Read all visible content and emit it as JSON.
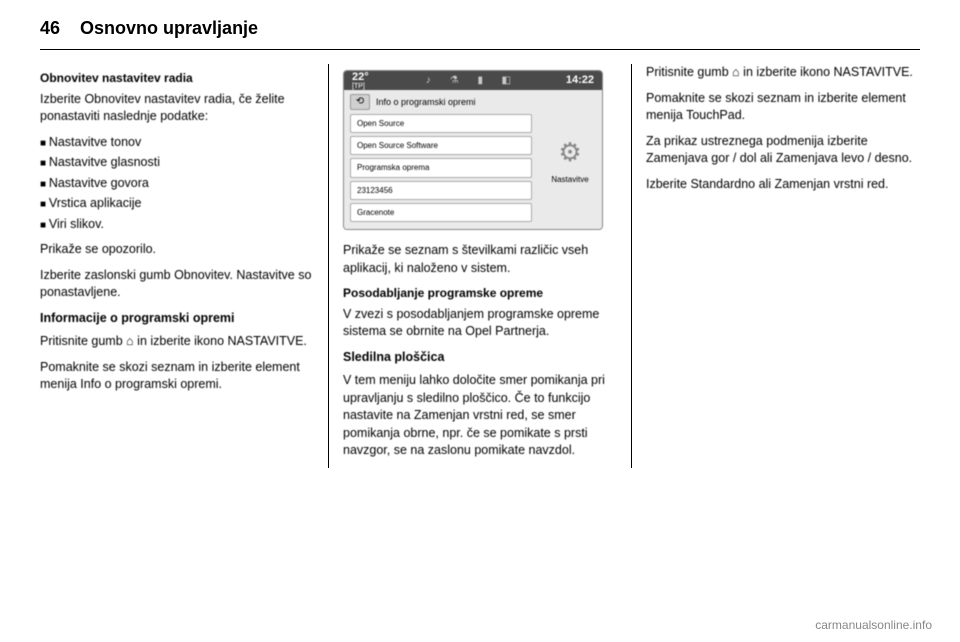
{
  "header": {
    "page_number": "46",
    "title": "Osnovno upravljanje"
  },
  "col1": {
    "heading1": "Obnovitev nastavitev radia",
    "p1": "Izberite Obnovitev nastavitev radia, če želite ponastaviti naslednje podatke:",
    "bullets": [
      "Nastavitve tonov",
      "Nastavitve glasnosti",
      "Nastavitve govora",
      "Vrstica aplikacije",
      "Viri slikov."
    ],
    "p2": "Prikaže se opozorilo.",
    "p3": "Izberite zaslonski gumb Obnovitev. Nastavitve so ponastavljene.",
    "heading2": "Informacije o programski opremi",
    "p4": "Pritisnite gumb ⌂ in izberite ikono NASTAVITVE.",
    "p5": "Pomaknite se skozi seznam in izberite element menija Info o programski opremi."
  },
  "col2": {
    "screenshot": {
      "temp": "22°",
      "tp": "[TP]",
      "time": "14:22",
      "title": "Info o programski opremi",
      "rows": [
        "Open Source",
        "Open Source Software",
        "Programska oprema",
        "23123456",
        "Gracenote"
      ],
      "right_label": "Nastavitve",
      "bg_color": "#eaeaea",
      "topbar_color": "#4a4a4a",
      "row_bg": "#ffffff"
    },
    "p1": "Prikaže se seznam s številkami različic vseh aplikacij, ki naloženo v sistem.",
    "subheading1": "Posodabljanje programske opreme",
    "p2": "V zvezi s posodabljanjem programske opreme sistema se obrnite na Opel Partnerja.",
    "heading1": "Sledilna ploščica",
    "p3": "V tem meniju lahko določite smer pomikanja pri upravljanju s sledilno ploščico. Če to funkcijo nastavite na Zamenjan vrstni red, se smer pomikanja obrne, npr. če se pomikate s prsti navzgor, se na zaslonu pomikate navzdol."
  },
  "col3": {
    "p1": "Pritisnite gumb ⌂ in izberite ikono NASTAVITVE.",
    "p2": "Pomaknite se skozi seznam in izberite element menija TouchPad.",
    "p3": "Za prikaz ustreznega podmenija izberite Zamenjava gor / dol ali Zamenjava levo / desno.",
    "p4": "Izberite Standardno ali Zamenjan vrstni red."
  },
  "watermark": "carmanualsonline.info"
}
